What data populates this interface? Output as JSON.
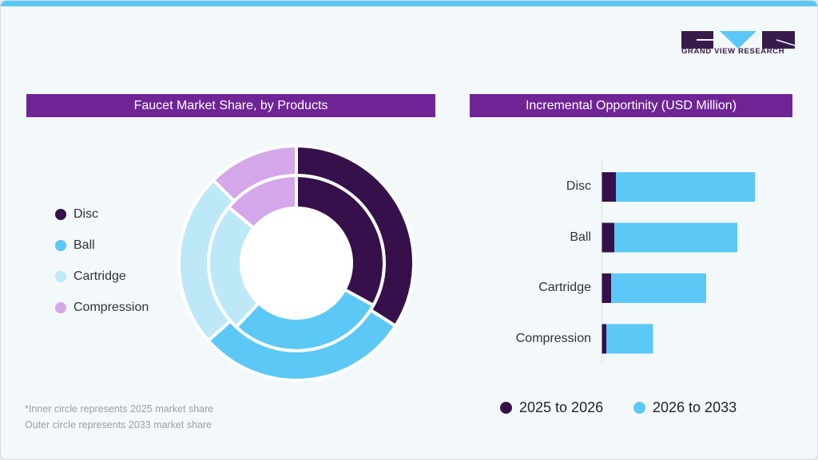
{
  "brand": {
    "name": "GRAND VIEW RESEARCH"
  },
  "colors": {
    "disc": "#36104a",
    "ball": "#5bc8f5",
    "cartridge": "#bde8f7",
    "compression": "#d4a7ea",
    "banner": "#6f2496",
    "accent": "#5ac8f5"
  },
  "left_title": "Faucet Market Share, by Products",
  "right_title": "Incremental Opportinity (USD Million)",
  "notes": [
    "*Inner circle represents 2025 market share",
    "Outer circle represents 2033 market share"
  ],
  "chart_data": [
    {
      "type": "pie",
      "title": "Faucet Market Share, by Products",
      "categories": [
        "Disc",
        "Ball",
        "Cartridge",
        "Compression"
      ],
      "legend_position": "left",
      "series": [
        {
          "name": "2025",
          "ring": "inner",
          "values": [
            33,
            29,
            24,
            14
          ]
        },
        {
          "name": "2033",
          "ring": "outer",
          "values": [
            34,
            29.5,
            24,
            12.5
          ]
        }
      ]
    },
    {
      "type": "bar",
      "orientation": "horizontal",
      "stacked": true,
      "title": "Incremental Opportinity (USD Million)",
      "categories": [
        "Disc",
        "Ball",
        "Cartridge",
        "Compression"
      ],
      "legend_position": "bottom",
      "xlim": [
        0,
        200
      ],
      "series": [
        {
          "name": "2025 to 2026",
          "values": [
            17.5,
            15.5,
            11.5,
            5.5
          ]
        },
        {
          "name": "2026 to 2033",
          "values": [
            174,
            154,
            119,
            58.5
          ]
        }
      ]
    }
  ]
}
